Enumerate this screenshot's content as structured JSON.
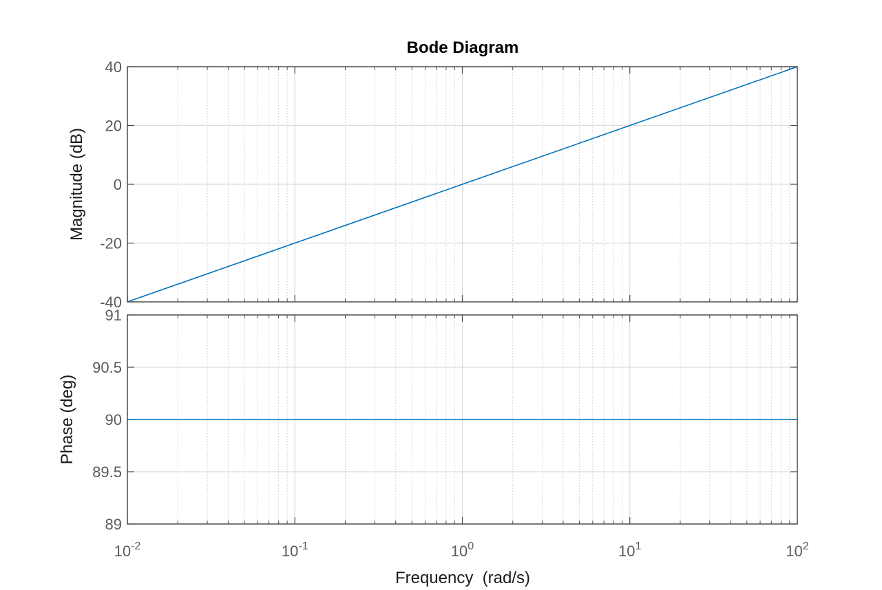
{
  "chart_data": [
    {
      "type": "line",
      "title": "Bode Diagram",
      "ylabel": "Magnitude (dB)",
      "xscale": "log",
      "xlim": [
        0.01,
        100
      ],
      "ylim": [
        -40,
        40
      ],
      "yticks": [
        40,
        20,
        0,
        -20,
        -40
      ],
      "ytick_labels": [
        "40",
        "20",
        "0",
        "-20",
        "-40"
      ],
      "grid": true,
      "series": [
        {
          "x": [
            0.01,
            0.1,
            1,
            10,
            100
          ],
          "values": [
            -40,
            -20,
            0,
            20,
            40
          ],
          "color": "#0072BD"
        }
      ]
    },
    {
      "type": "line",
      "xlabel": "Frequency  (rad/s)",
      "ylabel": "Phase (deg)",
      "xscale": "log",
      "xlim": [
        0.01,
        100
      ],
      "ylim": [
        89,
        91
      ],
      "yticks": [
        91,
        90.5,
        90,
        89.5,
        89
      ],
      "ytick_labels": [
        "91",
        "90.5",
        "90",
        "89.5",
        "89"
      ],
      "xticks": [
        {
          "base": "10",
          "exp": "-2"
        },
        {
          "base": "10",
          "exp": "-1"
        },
        {
          "base": "10",
          "exp": "0"
        },
        {
          "base": "10",
          "exp": "1"
        },
        {
          "base": "10",
          "exp": "2"
        }
      ],
      "grid": true,
      "series": [
        {
          "x": [
            0.01,
            100
          ],
          "values": [
            90,
            90
          ],
          "color": "#0072BD"
        }
      ]
    }
  ]
}
